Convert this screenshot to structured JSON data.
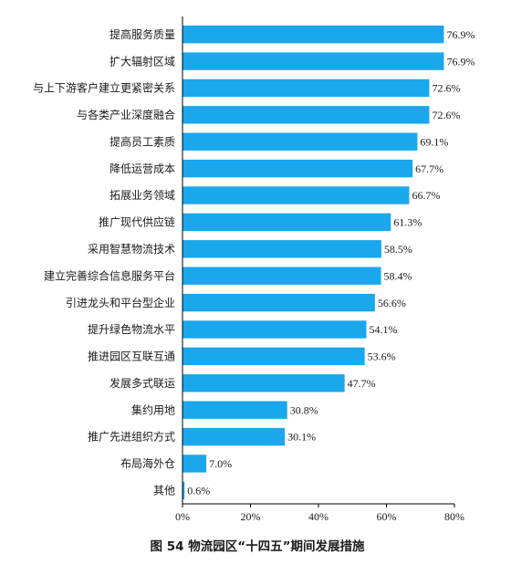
{
  "chart_data": {
    "type": "bar",
    "orientation": "horizontal",
    "title": "图 54 物流园区“十四五”期间发展措施",
    "categories": [
      "提高服务质量",
      "扩大辐射区域",
      "与上下游客户建立更紧密关系",
      "与各类产业深度融合",
      "提高员工素质",
      "降低运营成本",
      "拓展业务领域",
      "推广现代供应链",
      "采用智慧物流技术",
      "建立完善综合信息服务平台",
      "引进龙头和平台型企业",
      "提升绿色物流水平",
      "推进园区互联互通",
      "发展多式联运",
      "集约用地",
      "推广先进组织方式",
      "布局海外仓",
      "其他"
    ],
    "values": [
      76.9,
      76.9,
      72.6,
      72.6,
      69.1,
      67.7,
      66.7,
      61.3,
      58.5,
      58.4,
      56.6,
      54.1,
      53.6,
      47.7,
      30.8,
      30.1,
      7.0,
      0.6
    ],
    "value_labels": [
      "76.9%",
      "76.9%",
      "72.6%",
      "72.6%",
      "69.1%",
      "67.7%",
      "66.7%",
      "61.3%",
      "58.5%",
      "58.4%",
      "56.6%",
      "54.1%",
      "53.6%",
      "47.7%",
      "30.8%",
      "30.1%",
      "7.0%",
      "0.6%"
    ],
    "xlim": [
      0,
      80
    ],
    "xticks": [
      0,
      20,
      40,
      60,
      80
    ],
    "xtick_labels": [
      "0%",
      "20%",
      "40%",
      "60%",
      "80%"
    ],
    "grid": false,
    "legend": "none",
    "bar_color": "#1aa7ec",
    "axis_color": "#000000"
  }
}
